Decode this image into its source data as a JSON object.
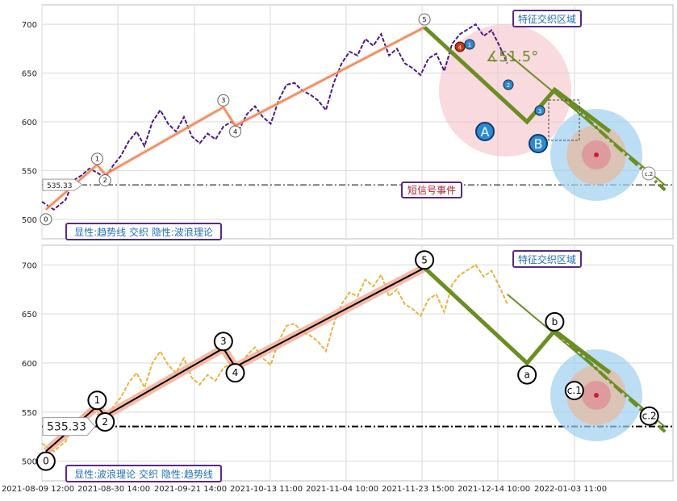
{
  "chart_data": [
    {
      "type": "line",
      "panel": "top",
      "ylim": [
        480,
        720
      ],
      "yticks": [
        500,
        550,
        600,
        650,
        700
      ],
      "grid": true,
      "series": [
        {
          "name": "",
          "color": "#4b1b82",
          "style": "dashed",
          "values": [
            [
              0,
              518
            ],
            [
              3,
              510
            ],
            [
              6,
              520
            ],
            [
              8,
              540
            ],
            [
              10,
              545
            ],
            [
              12,
              552
            ],
            [
              14,
              548
            ],
            [
              16,
              542
            ],
            [
              18,
              555
            ],
            [
              20,
              565
            ],
            [
              22,
              580
            ],
            [
              24,
              590
            ],
            [
              26,
              575
            ],
            [
              28,
              600
            ],
            [
              30,
              612
            ],
            [
              32,
              598
            ],
            [
              34,
              590
            ],
            [
              36,
              605
            ],
            [
              38,
              585
            ],
            [
              40,
              578
            ],
            [
              42,
              588
            ],
            [
              44,
              582
            ],
            [
              46,
              595
            ],
            [
              48,
              600
            ],
            [
              50,
              592
            ],
            [
              52,
              608
            ],
            [
              54,
              616
            ],
            [
              56,
              605
            ],
            [
              58,
              598
            ],
            [
              60,
              622
            ],
            [
              62,
              638
            ],
            [
              64,
              640
            ],
            [
              66,
              632
            ],
            [
              68,
              628
            ],
            [
              70,
              622
            ],
            [
              72,
              612
            ],
            [
              74,
              640
            ],
            [
              76,
              660
            ],
            [
              78,
              672
            ],
            [
              80,
              668
            ],
            [
              82,
              685
            ],
            [
              84,
              678
            ],
            [
              86,
              690
            ],
            [
              88,
              668
            ],
            [
              90,
              675
            ],
            [
              92,
              660
            ],
            [
              94,
              655
            ],
            [
              96,
              648
            ],
            [
              98,
              665
            ],
            [
              100,
              670
            ],
            [
              102,
              652
            ],
            [
              104,
              680
            ],
            [
              106,
              690
            ],
            [
              108,
              695
            ],
            [
              110,
              700
            ],
            [
              112,
              688
            ],
            [
              114,
              694
            ],
            [
              116,
              678
            ],
            [
              118,
              660
            ]
          ]
        },
        {
          "name": "",
          "color": "#e96a20",
          "style": "solid",
          "values": [
            [
              1,
              510
            ],
            [
              14,
              556
            ],
            [
              16,
              546
            ],
            [
              46,
              615
            ],
            [
              49,
              596
            ],
            [
              97,
              697
            ]
          ]
        }
      ],
      "wave_labels": [
        "0",
        "1",
        "2",
        "3",
        "4",
        "5"
      ],
      "reference_line": {
        "value": 535.33,
        "label": "535.33",
        "style": "dash-dot"
      },
      "annotations": {
        "angle": "∡51.5°",
        "circle_A": "A",
        "circle_B": "B",
        "box_region": "特征交织区域",
        "box_signal": "短信号事件",
        "box_legend": "显性:趋势线 交织 隐性:波浪理论",
        "target": "c.2",
        "small_markers": [
          "1",
          "2",
          "3",
          "4"
        ]
      }
    },
    {
      "type": "line",
      "panel": "bottom",
      "ylim": [
        480,
        720
      ],
      "yticks": [
        500,
        550,
        600,
        650,
        700
      ],
      "grid": true,
      "series": [
        {
          "name": "",
          "color": "#e9b440",
          "style": "dashed",
          "values": [
            [
              0,
              518
            ],
            [
              3,
              510
            ],
            [
              6,
              520
            ],
            [
              8,
              540
            ],
            [
              10,
              545
            ],
            [
              12,
              552
            ],
            [
              14,
              548
            ],
            [
              16,
              542
            ],
            [
              18,
              555
            ],
            [
              20,
              565
            ],
            [
              22,
              580
            ],
            [
              24,
              590
            ],
            [
              26,
              575
            ],
            [
              28,
              600
            ],
            [
              30,
              612
            ],
            [
              32,
              598
            ],
            [
              34,
              590
            ],
            [
              36,
              605
            ],
            [
              38,
              585
            ],
            [
              40,
              578
            ],
            [
              42,
              588
            ],
            [
              44,
              582
            ],
            [
              46,
              595
            ],
            [
              48,
              600
            ],
            [
              50,
              592
            ],
            [
              52,
              608
            ],
            [
              54,
              616
            ],
            [
              56,
              605
            ],
            [
              58,
              598
            ],
            [
              60,
              622
            ],
            [
              62,
              638
            ],
            [
              64,
              640
            ],
            [
              66,
              632
            ],
            [
              68,
              628
            ],
            [
              70,
              622
            ],
            [
              72,
              612
            ],
            [
              74,
              640
            ],
            [
              76,
              660
            ],
            [
              78,
              672
            ],
            [
              80,
              668
            ],
            [
              82,
              685
            ],
            [
              84,
              678
            ],
            [
              86,
              690
            ],
            [
              88,
              668
            ],
            [
              90,
              675
            ],
            [
              92,
              660
            ],
            [
              94,
              655
            ],
            [
              96,
              648
            ],
            [
              98,
              665
            ],
            [
              100,
              670
            ],
            [
              102,
              652
            ],
            [
              104,
              680
            ],
            [
              106,
              690
            ],
            [
              108,
              695
            ],
            [
              110,
              700
            ],
            [
              112,
              688
            ],
            [
              114,
              694
            ],
            [
              116,
              678
            ],
            [
              118,
              660
            ]
          ]
        },
        {
          "name": "",
          "color": "#000000",
          "style": "solid",
          "values": [
            [
              1,
              510
            ],
            [
              14,
              556
            ],
            [
              16,
              546
            ],
            [
              46,
              615
            ],
            [
              49,
              596
            ],
            [
              97,
              697
            ]
          ]
        }
      ],
      "wave_labels": [
        "0",
        "1",
        "2",
        "3",
        "4",
        "5",
        "a",
        "b",
        "c.1",
        "c.2"
      ],
      "reference_line": {
        "value": 535.33,
        "label": "535.33",
        "style": "dash-dot"
      },
      "annotations": {
        "box_region": "特征交织区域",
        "box_legend": "显性:波浪理论 交织 隐性:趋势线"
      }
    }
  ],
  "x_axis": {
    "tick_labels": [
      "2021-08-09 12:00",
      "2021-08-30 14:00",
      "2021-09-21 14:00",
      "2021-10-13 11:00",
      "2021-11-04 10:00",
      "2021-11-23 15:00",
      "2021-12-14 10:00",
      "2022-01-03 11:00"
    ]
  },
  "colors": {
    "grid": "#d9d9d9",
    "green_trend": "#6b8e23",
    "box_border": "#5a2a82",
    "box_text_blue": "#1f6fb5",
    "box_text_red": "#b0202a",
    "pink_zone": "#f3c1c9",
    "blue_zone": "#9fd0f0",
    "circle_blue": "#2a8ad4"
  }
}
